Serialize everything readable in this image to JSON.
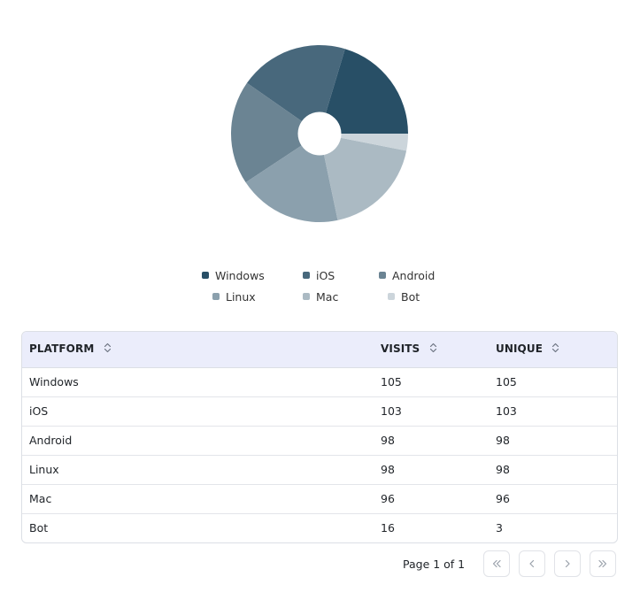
{
  "chart_data": {
    "type": "pie",
    "donut": true,
    "categories": [
      "Windows",
      "iOS",
      "Android",
      "Linux",
      "Mac",
      "Bot"
    ],
    "values": [
      105,
      103,
      98,
      98,
      96,
      16
    ],
    "colors": [
      "#284f66",
      "#48687c",
      "#6b8493",
      "#8ba0ad",
      "#abbac3",
      "#ccd5db"
    ],
    "legend_position": "bottom"
  },
  "table": {
    "columns": [
      {
        "label": "PLATFORM"
      },
      {
        "label": "VISITS"
      },
      {
        "label": "UNIQUE"
      }
    ],
    "rows": [
      {
        "platform": "Windows",
        "visits": "105",
        "unique": "105"
      },
      {
        "platform": "iOS",
        "visits": "103",
        "unique": "103"
      },
      {
        "platform": "Android",
        "visits": "98",
        "unique": "98"
      },
      {
        "platform": "Linux",
        "visits": "98",
        "unique": "98"
      },
      {
        "platform": "Mac",
        "visits": "96",
        "unique": "96"
      },
      {
        "platform": "Bot",
        "visits": "16",
        "unique": "3"
      }
    ]
  },
  "pagination": {
    "label": "Page 1 of 1",
    "icons": [
      "chevrons-left-icon",
      "chevron-left-icon",
      "chevron-right-icon",
      "chevrons-right-icon"
    ]
  }
}
